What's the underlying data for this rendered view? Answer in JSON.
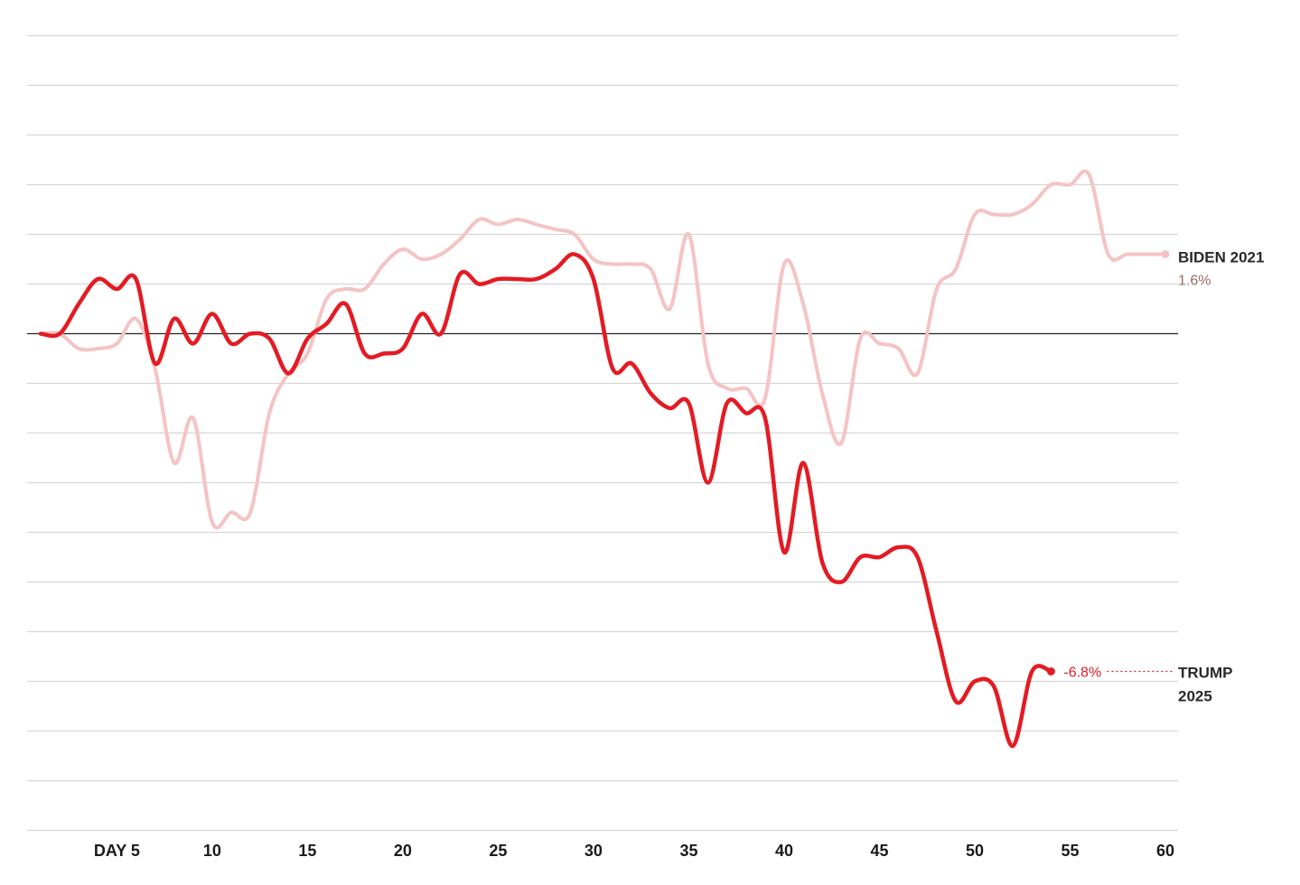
{
  "chart_data": {
    "type": "line",
    "xlabel": "",
    "ylabel": "",
    "xlim": [
      1,
      60
    ],
    "ylim": [
      -10,
      6
    ],
    "x_ticks": [
      {
        "value": 5,
        "label": "DAY 5"
      },
      {
        "value": 10,
        "label": "10"
      },
      {
        "value": 15,
        "label": "15"
      },
      {
        "value": 20,
        "label": "20"
      },
      {
        "value": 25,
        "label": "25"
      },
      {
        "value": 30,
        "label": "30"
      },
      {
        "value": 35,
        "label": "35"
      },
      {
        "value": 40,
        "label": "40"
      },
      {
        "value": 45,
        "label": "45"
      },
      {
        "value": 50,
        "label": "50"
      },
      {
        "value": 55,
        "label": "55"
      },
      {
        "value": 60,
        "label": "60"
      }
    ],
    "grid": true,
    "series": [
      {
        "name": "BIDEN 2021",
        "label_lines": [
          "BIDEN 2021"
        ],
        "end_value_label": "1.6%",
        "color": "#f5c3c3",
        "label_color": "#9a6b6b",
        "x": [
          1,
          2,
          3,
          4,
          5,
          6,
          7,
          8,
          9,
          10,
          11,
          12,
          13,
          14,
          15,
          16,
          17,
          18,
          19,
          20,
          21,
          22,
          23,
          24,
          25,
          26,
          27,
          28,
          29,
          30,
          31,
          32,
          33,
          34,
          35,
          36,
          37,
          38,
          39,
          40,
          41,
          42,
          43,
          44,
          45,
          46,
          47,
          48,
          49,
          50,
          51,
          52,
          53,
          54,
          55,
          56,
          57,
          58,
          59,
          60
        ],
        "values": [
          0.0,
          0.0,
          -0.3,
          -0.3,
          -0.2,
          0.3,
          -0.7,
          -2.6,
          -1.7,
          -3.8,
          -3.6,
          -3.6,
          -1.6,
          -0.8,
          -0.4,
          0.7,
          0.9,
          0.9,
          1.4,
          1.7,
          1.5,
          1.6,
          1.9,
          2.3,
          2.2,
          2.3,
          2.2,
          2.1,
          2.0,
          1.5,
          1.4,
          1.4,
          1.3,
          0.5,
          2.0,
          -0.6,
          -1.1,
          -1.1,
          -1.3,
          1.4,
          0.6,
          -1.2,
          -2.2,
          -0.1,
          -0.2,
          -0.3,
          -0.8,
          0.9,
          1.3,
          2.4,
          2.4,
          2.4,
          2.6,
          3.0,
          3.0,
          3.2,
          1.6,
          1.6,
          1.6,
          1.6
        ]
      },
      {
        "name": "TRUMP 2025",
        "label_lines": [
          "TRUMP",
          "2025"
        ],
        "end_value_label": "-6.8%",
        "color": "#e31b23",
        "label_color": "#2a2a2a",
        "x": [
          1,
          2,
          3,
          4,
          5,
          6,
          7,
          8,
          9,
          10,
          11,
          12,
          13,
          14,
          15,
          16,
          17,
          18,
          19,
          20,
          21,
          22,
          23,
          24,
          25,
          26,
          27,
          28,
          29,
          30,
          31,
          32,
          33,
          34,
          35,
          36,
          37,
          38,
          39,
          40,
          41,
          42,
          43,
          44,
          45,
          46,
          47,
          48,
          49,
          50,
          51,
          52,
          53,
          54
        ],
        "values": [
          0.0,
          0.0,
          0.6,
          1.1,
          0.9,
          1.1,
          -0.6,
          0.3,
          -0.2,
          0.4,
          -0.2,
          0.0,
          -0.1,
          -0.8,
          -0.1,
          0.2,
          0.6,
          -0.4,
          -0.4,
          -0.3,
          0.4,
          0.0,
          1.2,
          1.0,
          1.1,
          1.1,
          1.1,
          1.3,
          1.6,
          1.1,
          -0.7,
          -0.6,
          -1.2,
          -1.5,
          -1.4,
          -3.0,
          -1.4,
          -1.6,
          -1.7,
          -4.4,
          -2.6,
          -4.6,
          -5.0,
          -4.5,
          -4.5,
          -4.3,
          -4.5,
          -6.0,
          -7.4,
          -7.0,
          -7.1,
          -8.3,
          -6.8,
          -6.8
        ]
      }
    ]
  }
}
